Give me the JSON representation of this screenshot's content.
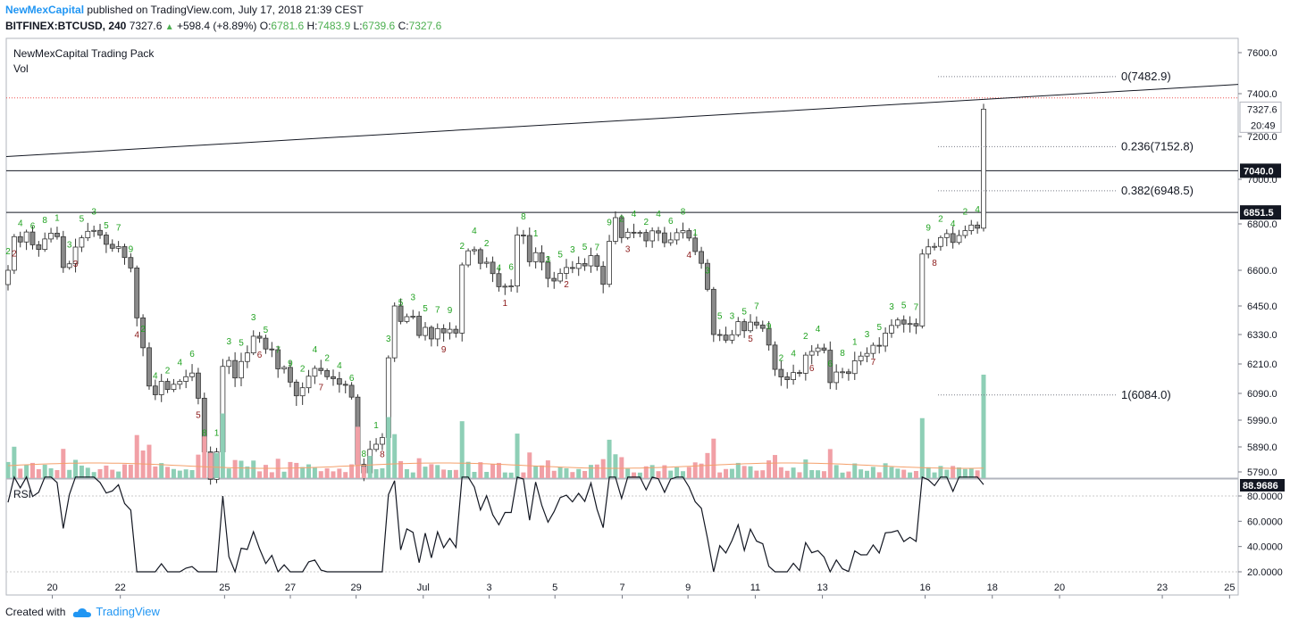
{
  "header": {
    "publisher": "NewMexCapital",
    "published_text": "published on TradingView.com, July 17, 2018 21:39 CEST",
    "symbol": "BITFINEX:BTCUSD, 240",
    "last": "7327.6",
    "change": "+598.4 (+8.89%)",
    "o_label": "O:",
    "o_value": "6781.6",
    "h_label": "H:",
    "h_value": "7483.9",
    "l_label": "L:",
    "l_value": "6739.6",
    "c_label": "C:",
    "c_value": "7327.6"
  },
  "legend": {
    "indicator": "NewMexCapital Trading Pack",
    "volume": "Vol",
    "rsi": "RSI"
  },
  "footer": {
    "created_with": "Created with",
    "brand": "TradingView"
  },
  "colors": {
    "up": "#26a69a",
    "down": "#ef5350",
    "buy_count": "#22a322",
    "sell_count": "#8b1a1a",
    "brand": "#2196f3"
  },
  "chart_data": {
    "type": "candlestick",
    "price_axis": {
      "min": 5740,
      "max": 7660,
      "ticks": [
        7600.0,
        7400.0,
        7200.0,
        7000.0,
        6800.0,
        6600.0,
        6450.0,
        6330.0,
        6210.0,
        6090.0,
        5990.0,
        5890.0,
        5790.0
      ]
    },
    "price_badges": [
      {
        "value": 7327.6,
        "label": "7327.6",
        "sub": "20:49",
        "style": "plain"
      },
      {
        "value": 7040.0,
        "label": "7040.0",
        "style": "dark"
      },
      {
        "value": 6851.5,
        "label": "6851.5",
        "style": "dark"
      }
    ],
    "horizontal_levels": [
      7040.0,
      6851.5
    ],
    "dotted_level": 7380,
    "fibonacci": [
      {
        "label": "0(7482.9)",
        "value": 7482.9
      },
      {
        "label": "0.236(7152.8)",
        "value": 7152.8
      },
      {
        "label": "0.382(6948.5)",
        "value": 6948.5
      },
      {
        "label": "1(6084.0)",
        "value": 6084.0
      }
    ],
    "trendline": {
      "from": 7106,
      "to": 7445
    },
    "x_axis": {
      "ticks": [
        {
          "label": "20",
          "pos": 0.0374
        },
        {
          "label": "22",
          "pos": 0.0926
        },
        {
          "label": "25",
          "pos": 0.1772
        },
        {
          "label": "27",
          "pos": 0.2306
        },
        {
          "label": "29",
          "pos": 0.284
        },
        {
          "label": "Jul",
          "pos": 0.3385
        },
        {
          "label": "3",
          "pos": 0.392
        },
        {
          "label": "5",
          "pos": 0.4454
        },
        {
          "label": "7",
          "pos": 0.5
        },
        {
          "label": "9",
          "pos": 0.5534
        },
        {
          "label": "11",
          "pos": 0.608
        },
        {
          "label": "13",
          "pos": 0.6625
        },
        {
          "label": "16",
          "pos": 0.7459
        },
        {
          "label": "18",
          "pos": 0.8004
        },
        {
          "label": "20",
          "pos": 0.855
        },
        {
          "label": "23",
          "pos": 0.9384
        },
        {
          "label": "25",
          "pos": 0.993
        }
      ]
    },
    "close_series": [
      6600,
      6745,
      6722,
      6765,
      6710,
      6690,
      6735,
      6760,
      6745,
      6612,
      6628,
      6700,
      6740,
      6768,
      6772,
      6752,
      6712,
      6695,
      6702,
      6655,
      6610,
      6400,
      6276,
      6120,
      6085,
      6139,
      6106,
      6127,
      6139,
      6158,
      6173,
      6072,
      5870,
      5760,
      5870,
      6200,
      6224,
      6153,
      6220,
      6255,
      6323,
      6315,
      6271,
      6268,
      6190,
      6196,
      6136,
      6081,
      6113,
      6160,
      6192,
      6183,
      6158,
      6150,
      6127,
      6123,
      6076,
      5820,
      5786,
      5880,
      5900,
      5925,
      6235,
      6450,
      6385,
      6405,
      6407,
      6326,
      6360,
      6312,
      6355,
      6337,
      6352,
      6336,
      6623,
      6684,
      6689,
      6630,
      6635,
      6586,
      6531,
      6533,
      6534,
      6752,
      6750,
      6637,
      6676,
      6635,
      6566,
      6555,
      6587,
      6612,
      6608,
      6629,
      6619,
      6663,
      6617,
      6541,
      6725,
      6828,
      6741,
      6764,
      6762,
      6763,
      6727,
      6770,
      6761,
      6719,
      6731,
      6762,
      6771,
      6739,
      6681,
      6630,
      6520,
      6330,
      6328,
      6307,
      6329,
      6384,
      6346,
      6382,
      6370,
      6356,
      6287,
      6188,
      6157,
      6146,
      6175,
      6172,
      6246,
      6261,
      6275,
      6266,
      6134,
      6177,
      6178,
      6171,
      6223,
      6242,
      6253,
      6286,
      6283,
      6336,
      6368,
      6391,
      6374,
      6376,
      6366,
      6670,
      6701,
      6703,
      6741,
      6758,
      6720,
      6750,
      6771,
      6795,
      6781.6,
      7327.6
    ],
    "rsi_axis": {
      "ticks": [
        80.0,
        60.0,
        40.0,
        20.0
      ],
      "value_label": "88.9686",
      "value": 88.9686
    },
    "td_buy_labels": [
      "2",
      "3",
      "4",
      "5",
      "6",
      "7",
      "8",
      "9",
      "1",
      "2",
      "3",
      "4",
      "5"
    ],
    "td_sell_labels": [
      "1",
      "2",
      "3",
      "4",
      "5",
      "6",
      "7",
      "8",
      "9"
    ]
  }
}
